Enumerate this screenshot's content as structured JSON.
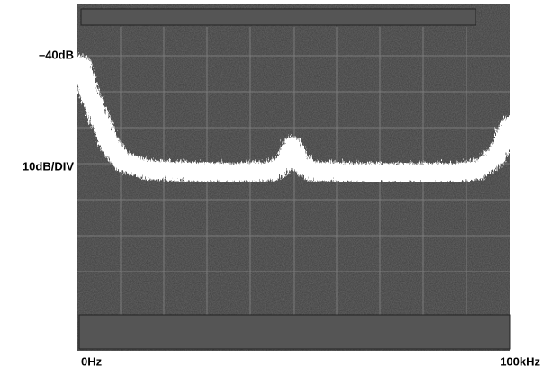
{
  "display": {
    "top_label": "–40dB",
    "scale_label": "10dB/DIV",
    "start_label": "0Hz",
    "stop_label": "100kHz"
  }
}
